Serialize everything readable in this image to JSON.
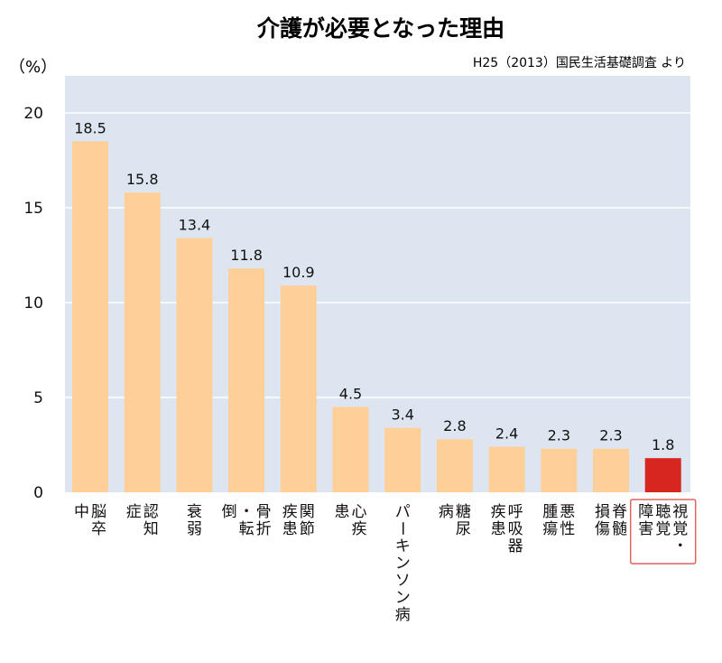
{
  "chart_data": {
    "type": "bar",
    "title": "介護が必要となった理由",
    "ylabel": "（%）",
    "source": "H25（2013）国民生活基礎調査 より",
    "ylim": [
      0,
      22
    ],
    "yticks": [
      0,
      5,
      10,
      15,
      20
    ],
    "grid": true,
    "categories": [
      "脳卒中",
      "認知症",
      "衰弱",
      "骨折・転倒",
      "関節疾患",
      "心疾患",
      "パーキンソン病",
      "糖尿病",
      "呼吸器疾患",
      "悪性腫瘍",
      "脊髄損傷",
      "視覚・聴覚障害"
    ],
    "label_columns": [
      [
        "脳卒",
        "中"
      ],
      [
        "認知",
        "症"
      ],
      [
        "衰弱"
      ],
      [
        "骨折",
        "・転",
        "倒"
      ],
      [
        "関節",
        "疾患"
      ],
      [
        "心疾",
        "患"
      ],
      [
        "パーキンソン病"
      ],
      [
        "糖尿",
        "病"
      ],
      [
        "呼吸器",
        "疾患"
      ],
      [
        "悪性",
        "腫瘍"
      ],
      [
        "脊髄",
        "損傷"
      ],
      [
        "視覚・",
        "聴覚",
        "障害"
      ]
    ],
    "values": [
      18.5,
      15.8,
      13.4,
      11.8,
      10.9,
      4.5,
      3.4,
      2.8,
      2.4,
      2.3,
      2.3,
      1.8
    ],
    "value_labels": [
      "18.5",
      "15.8",
      "13.4",
      "11.8",
      "10.9",
      "4.5",
      "3.4",
      "2.8",
      "2.4",
      "2.3",
      "2.3",
      "1.8"
    ],
    "highlight_index": 11,
    "colors": {
      "bar": "#ffcf99",
      "highlight": "#d7261f",
      "highlight_border": "#e0645e",
      "plot_background": "#dde6f0",
      "grid": "#ffffff",
      "text": "#111111"
    }
  }
}
